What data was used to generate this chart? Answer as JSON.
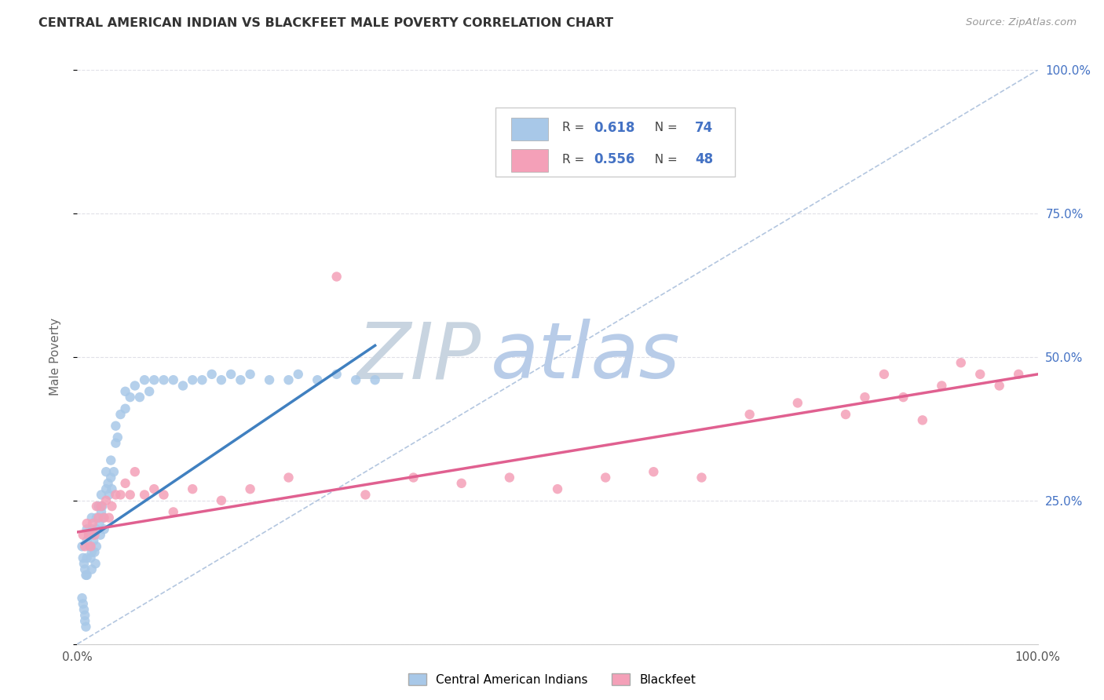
{
  "title": "CENTRAL AMERICAN INDIAN VS BLACKFEET MALE POVERTY CORRELATION CHART",
  "source": "Source: ZipAtlas.com",
  "ylabel": "Male Poverty",
  "xlim": [
    0,
    1
  ],
  "ylim": [
    0,
    1
  ],
  "xticks": [
    0.0,
    0.25,
    0.5,
    0.75,
    1.0
  ],
  "yticks": [
    0.0,
    0.25,
    0.5,
    0.75,
    1.0
  ],
  "xticklabels_bottom": [
    "0.0%",
    "",
    "",
    "",
    "100.0%"
  ],
  "yticklabels_right": [
    "",
    "25.0%",
    "50.0%",
    "75.0%",
    "100.0%"
  ],
  "color_blue": "#a8c8e8",
  "color_pink": "#f4a0b8",
  "color_line_blue": "#4080c0",
  "color_line_pink": "#e06090",
  "color_diag": "#a0b8d8",
  "color_title": "#333333",
  "color_right_axis": "#4472c4",
  "color_grid": "#e0e0e8",
  "watermark_zip_color": "#c8d8e8",
  "watermark_atlas_color": "#b8cce4",
  "legend_label_blue": "Central American Indians",
  "legend_label_pink": "Blackfeet",
  "blue_scatter_x": [
    0.005,
    0.006,
    0.007,
    0.008,
    0.009,
    0.01,
    0.01,
    0.01,
    0.01,
    0.012,
    0.013,
    0.014,
    0.015,
    0.015,
    0.015,
    0.015,
    0.016,
    0.017,
    0.018,
    0.019,
    0.02,
    0.02,
    0.02,
    0.022,
    0.023,
    0.024,
    0.025,
    0.025,
    0.026,
    0.027,
    0.028,
    0.03,
    0.03,
    0.032,
    0.033,
    0.035,
    0.035,
    0.036,
    0.038,
    0.04,
    0.04,
    0.042,
    0.045,
    0.05,
    0.05,
    0.055,
    0.06,
    0.065,
    0.07,
    0.075,
    0.08,
    0.09,
    0.1,
    0.11,
    0.12,
    0.13,
    0.14,
    0.15,
    0.16,
    0.17,
    0.18,
    0.2,
    0.22,
    0.23,
    0.25,
    0.27,
    0.29,
    0.31,
    0.005,
    0.006,
    0.007,
    0.008,
    0.008,
    0.009
  ],
  "blue_scatter_y": [
    0.17,
    0.15,
    0.14,
    0.13,
    0.12,
    0.2,
    0.18,
    0.15,
    0.12,
    0.19,
    0.17,
    0.15,
    0.22,
    0.19,
    0.16,
    0.13,
    0.2,
    0.18,
    0.16,
    0.14,
    0.22,
    0.2,
    0.17,
    0.24,
    0.21,
    0.19,
    0.26,
    0.23,
    0.24,
    0.22,
    0.2,
    0.3,
    0.27,
    0.28,
    0.26,
    0.32,
    0.29,
    0.27,
    0.3,
    0.38,
    0.35,
    0.36,
    0.4,
    0.44,
    0.41,
    0.43,
    0.45,
    0.43,
    0.46,
    0.44,
    0.46,
    0.46,
    0.46,
    0.45,
    0.46,
    0.46,
    0.47,
    0.46,
    0.47,
    0.46,
    0.47,
    0.46,
    0.46,
    0.47,
    0.46,
    0.47,
    0.46,
    0.46,
    0.08,
    0.07,
    0.06,
    0.05,
    0.04,
    0.03
  ],
  "pink_scatter_x": [
    0.006,
    0.008,
    0.01,
    0.012,
    0.014,
    0.016,
    0.018,
    0.02,
    0.022,
    0.025,
    0.028,
    0.03,
    0.033,
    0.036,
    0.04,
    0.045,
    0.05,
    0.055,
    0.06,
    0.07,
    0.08,
    0.09,
    0.1,
    0.12,
    0.15,
    0.18,
    0.22,
    0.27,
    0.3,
    0.35,
    0.4,
    0.45,
    0.5,
    0.55,
    0.6,
    0.65,
    0.7,
    0.75,
    0.8,
    0.82,
    0.84,
    0.86,
    0.88,
    0.9,
    0.92,
    0.94,
    0.96,
    0.98
  ],
  "pink_scatter_y": [
    0.19,
    0.17,
    0.21,
    0.19,
    0.17,
    0.21,
    0.19,
    0.24,
    0.22,
    0.24,
    0.22,
    0.25,
    0.22,
    0.24,
    0.26,
    0.26,
    0.28,
    0.26,
    0.3,
    0.26,
    0.27,
    0.26,
    0.23,
    0.27,
    0.25,
    0.27,
    0.29,
    0.64,
    0.26,
    0.29,
    0.28,
    0.29,
    0.27,
    0.29,
    0.3,
    0.29,
    0.4,
    0.42,
    0.4,
    0.43,
    0.47,
    0.43,
    0.39,
    0.45,
    0.49,
    0.47,
    0.45,
    0.47
  ],
  "blue_trend_x": [
    0.005,
    0.31
  ],
  "blue_trend_y": [
    0.175,
    0.52
  ],
  "pink_trend_x": [
    0.0,
    1.0
  ],
  "pink_trend_y": [
    0.195,
    0.47
  ]
}
